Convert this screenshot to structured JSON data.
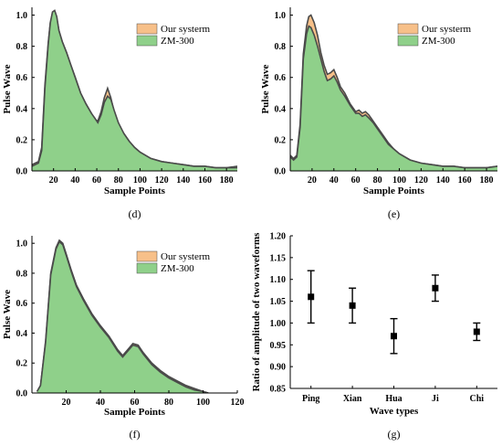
{
  "colors": {
    "our_system": "#f7c089",
    "zm300": "#8fd08a",
    "outline": "#4a4a4a",
    "axis": "#000000",
    "error_bar": "#000000"
  },
  "chart_data": [
    {
      "id": "d",
      "panel_label": "(d)",
      "type": "area",
      "xlabel": "Sample Points",
      "ylabel": "Pulse Wave",
      "xlim": [
        0,
        190
      ],
      "ylim": [
        0,
        1.05
      ],
      "xticks": [
        20,
        40,
        60,
        80,
        100,
        120,
        140,
        160,
        180
      ],
      "yticks": [
        0.0,
        0.2,
        0.4,
        0.6,
        0.8,
        1.0
      ],
      "ytick_labels": [
        "0.0",
        "0.2",
        "0.4",
        "0.6",
        "0.8",
        "1.0"
      ],
      "legend_position": "top-right",
      "series": [
        {
          "name": "Our systerm",
          "x": [
            0,
            3,
            6,
            9,
            12,
            15,
            17,
            19,
            21,
            23,
            25,
            28,
            32,
            36,
            40,
            45,
            50,
            55,
            58,
            61,
            64,
            67,
            70,
            73,
            76,
            80,
            85,
            90,
            95,
            100,
            110,
            120,
            130,
            140,
            150,
            160,
            170,
            180,
            190
          ],
          "y": [
            0.04,
            0.05,
            0.06,
            0.15,
            0.55,
            0.82,
            0.95,
            1.01,
            1.02,
            0.98,
            0.9,
            0.83,
            0.76,
            0.68,
            0.6,
            0.5,
            0.43,
            0.37,
            0.33,
            0.32,
            0.38,
            0.47,
            0.53,
            0.47,
            0.38,
            0.3,
            0.24,
            0.19,
            0.15,
            0.12,
            0.08,
            0.06,
            0.05,
            0.04,
            0.03,
            0.03,
            0.02,
            0.02,
            0.03
          ]
        },
        {
          "name": "ZM-300",
          "x": [
            0,
            3,
            6,
            9,
            12,
            15,
            17,
            19,
            21,
            23,
            25,
            28,
            32,
            36,
            40,
            45,
            50,
            55,
            58,
            61,
            64,
            67,
            70,
            73,
            76,
            80,
            85,
            90,
            95,
            100,
            110,
            120,
            130,
            140,
            150,
            160,
            170,
            180,
            190
          ],
          "y": [
            0.03,
            0.04,
            0.05,
            0.13,
            0.53,
            0.81,
            0.95,
            1.02,
            1.03,
            0.99,
            0.9,
            0.83,
            0.76,
            0.68,
            0.6,
            0.5,
            0.43,
            0.37,
            0.34,
            0.31,
            0.36,
            0.44,
            0.48,
            0.46,
            0.39,
            0.31,
            0.24,
            0.19,
            0.15,
            0.12,
            0.08,
            0.06,
            0.05,
            0.04,
            0.03,
            0.03,
            0.02,
            0.02,
            0.02
          ]
        }
      ]
    },
    {
      "id": "e",
      "panel_label": "(e)",
      "type": "area",
      "xlabel": "Sample Points",
      "ylabel": "Pulse Wave",
      "xlim": [
        0,
        190
      ],
      "ylim": [
        0,
        1.05
      ],
      "xticks": [
        20,
        40,
        60,
        80,
        100,
        120,
        140,
        160,
        180
      ],
      "yticks": [
        0.0,
        0.2,
        0.4,
        0.6,
        0.8,
        1.0
      ],
      "ytick_labels": [
        "0.0",
        "0.2",
        "0.4",
        "0.6",
        "0.8",
        "1.0"
      ],
      "legend_position": "top-right",
      "series": [
        {
          "name": "Our systerm",
          "x": [
            0,
            3,
            6,
            9,
            12,
            15,
            17,
            19,
            22,
            25,
            28,
            31,
            34,
            37,
            40,
            43,
            46,
            50,
            55,
            60,
            63,
            66,
            69,
            72,
            76,
            80,
            85,
            90,
            95,
            100,
            110,
            120,
            130,
            140,
            150,
            160,
            170,
            180,
            190
          ],
          "y": [
            0.1,
            0.08,
            0.1,
            0.3,
            0.75,
            0.93,
            0.99,
            1.0,
            0.95,
            0.87,
            0.76,
            0.68,
            0.62,
            0.63,
            0.65,
            0.6,
            0.54,
            0.5,
            0.43,
            0.38,
            0.39,
            0.37,
            0.38,
            0.36,
            0.32,
            0.28,
            0.23,
            0.18,
            0.14,
            0.11,
            0.07,
            0.05,
            0.04,
            0.03,
            0.03,
            0.02,
            0.02,
            0.02,
            0.03
          ]
        },
        {
          "name": "ZM-300",
          "x": [
            0,
            3,
            6,
            9,
            12,
            15,
            17,
            19,
            22,
            25,
            28,
            31,
            34,
            37,
            40,
            43,
            46,
            50,
            55,
            60,
            63,
            66,
            69,
            72,
            76,
            80,
            85,
            90,
            95,
            100,
            110,
            120,
            130,
            140,
            150,
            160,
            170,
            180,
            190
          ],
          "y": [
            0.09,
            0.07,
            0.09,
            0.28,
            0.72,
            0.88,
            0.93,
            0.92,
            0.87,
            0.8,
            0.72,
            0.64,
            0.58,
            0.59,
            0.61,
            0.57,
            0.52,
            0.48,
            0.42,
            0.37,
            0.37,
            0.35,
            0.36,
            0.34,
            0.31,
            0.27,
            0.22,
            0.17,
            0.14,
            0.11,
            0.07,
            0.05,
            0.04,
            0.03,
            0.03,
            0.02,
            0.02,
            0.02,
            0.03
          ]
        }
      ]
    },
    {
      "id": "f",
      "panel_label": "(f)",
      "type": "area",
      "xlabel": "Sample Points",
      "ylabel": "Pulse Wave",
      "xlim": [
        0,
        120
      ],
      "ylim": [
        0,
        1.05
      ],
      "xticks": [
        20,
        40,
        60,
        80,
        100,
        120
      ],
      "yticks": [
        0.0,
        0.2,
        0.4,
        0.6,
        0.8,
        1.0
      ],
      "ytick_labels": [
        "0.0",
        "0.2",
        "0.4",
        "0.6",
        "0.8",
        "1.0"
      ],
      "legend_position": "top-right",
      "series": [
        {
          "name": "Our systerm",
          "x": [
            3,
            5,
            8,
            11,
            14,
            16,
            18,
            20,
            23,
            26,
            30,
            35,
            40,
            45,
            50,
            53,
            56,
            59,
            62,
            65,
            70,
            75,
            80,
            85,
            90,
            95,
            100,
            103
          ],
          "y": [
            0.01,
            0.05,
            0.35,
            0.8,
            0.97,
            1.02,
            1.0,
            0.93,
            0.82,
            0.72,
            0.63,
            0.53,
            0.45,
            0.38,
            0.29,
            0.25,
            0.29,
            0.33,
            0.32,
            0.27,
            0.2,
            0.15,
            0.11,
            0.08,
            0.05,
            0.03,
            0.01,
            0.0
          ]
        },
        {
          "name": "ZM-300",
          "x": [
            3,
            5,
            8,
            11,
            14,
            16,
            18,
            20,
            23,
            26,
            30,
            35,
            40,
            45,
            50,
            53,
            56,
            59,
            62,
            65,
            70,
            75,
            80,
            85,
            90,
            95,
            100,
            103
          ],
          "y": [
            0.01,
            0.05,
            0.34,
            0.79,
            0.96,
            1.01,
            0.99,
            0.92,
            0.81,
            0.71,
            0.62,
            0.52,
            0.44,
            0.37,
            0.28,
            0.24,
            0.28,
            0.32,
            0.31,
            0.26,
            0.19,
            0.14,
            0.1,
            0.07,
            0.04,
            0.02,
            0.01,
            0.0
          ]
        }
      ]
    },
    {
      "id": "g",
      "panel_label": "(g)",
      "type": "scatter",
      "xlabel": "Wave types",
      "ylabel": "Ratio of amplitude of two waveforms",
      "ylim": [
        0.85,
        1.2
      ],
      "yticks": [
        0.85,
        0.9,
        0.95,
        1.0,
        1.05,
        1.1,
        1.15,
        1.2
      ],
      "ytick_labels": [
        "0.85",
        "0.90",
        "0.95",
        "1.00",
        "1.05",
        "1.10",
        "1.15",
        "1.20"
      ],
      "categories": [
        "Ping",
        "Xian",
        "Hua",
        "Ji",
        "Chi"
      ],
      "values": [
        1.06,
        1.04,
        0.97,
        1.08,
        0.98
      ],
      "error_low": [
        1.0,
        1.0,
        0.93,
        1.05,
        0.96
      ],
      "error_high": [
        1.12,
        1.08,
        1.01,
        1.11,
        1.0
      ]
    }
  ]
}
